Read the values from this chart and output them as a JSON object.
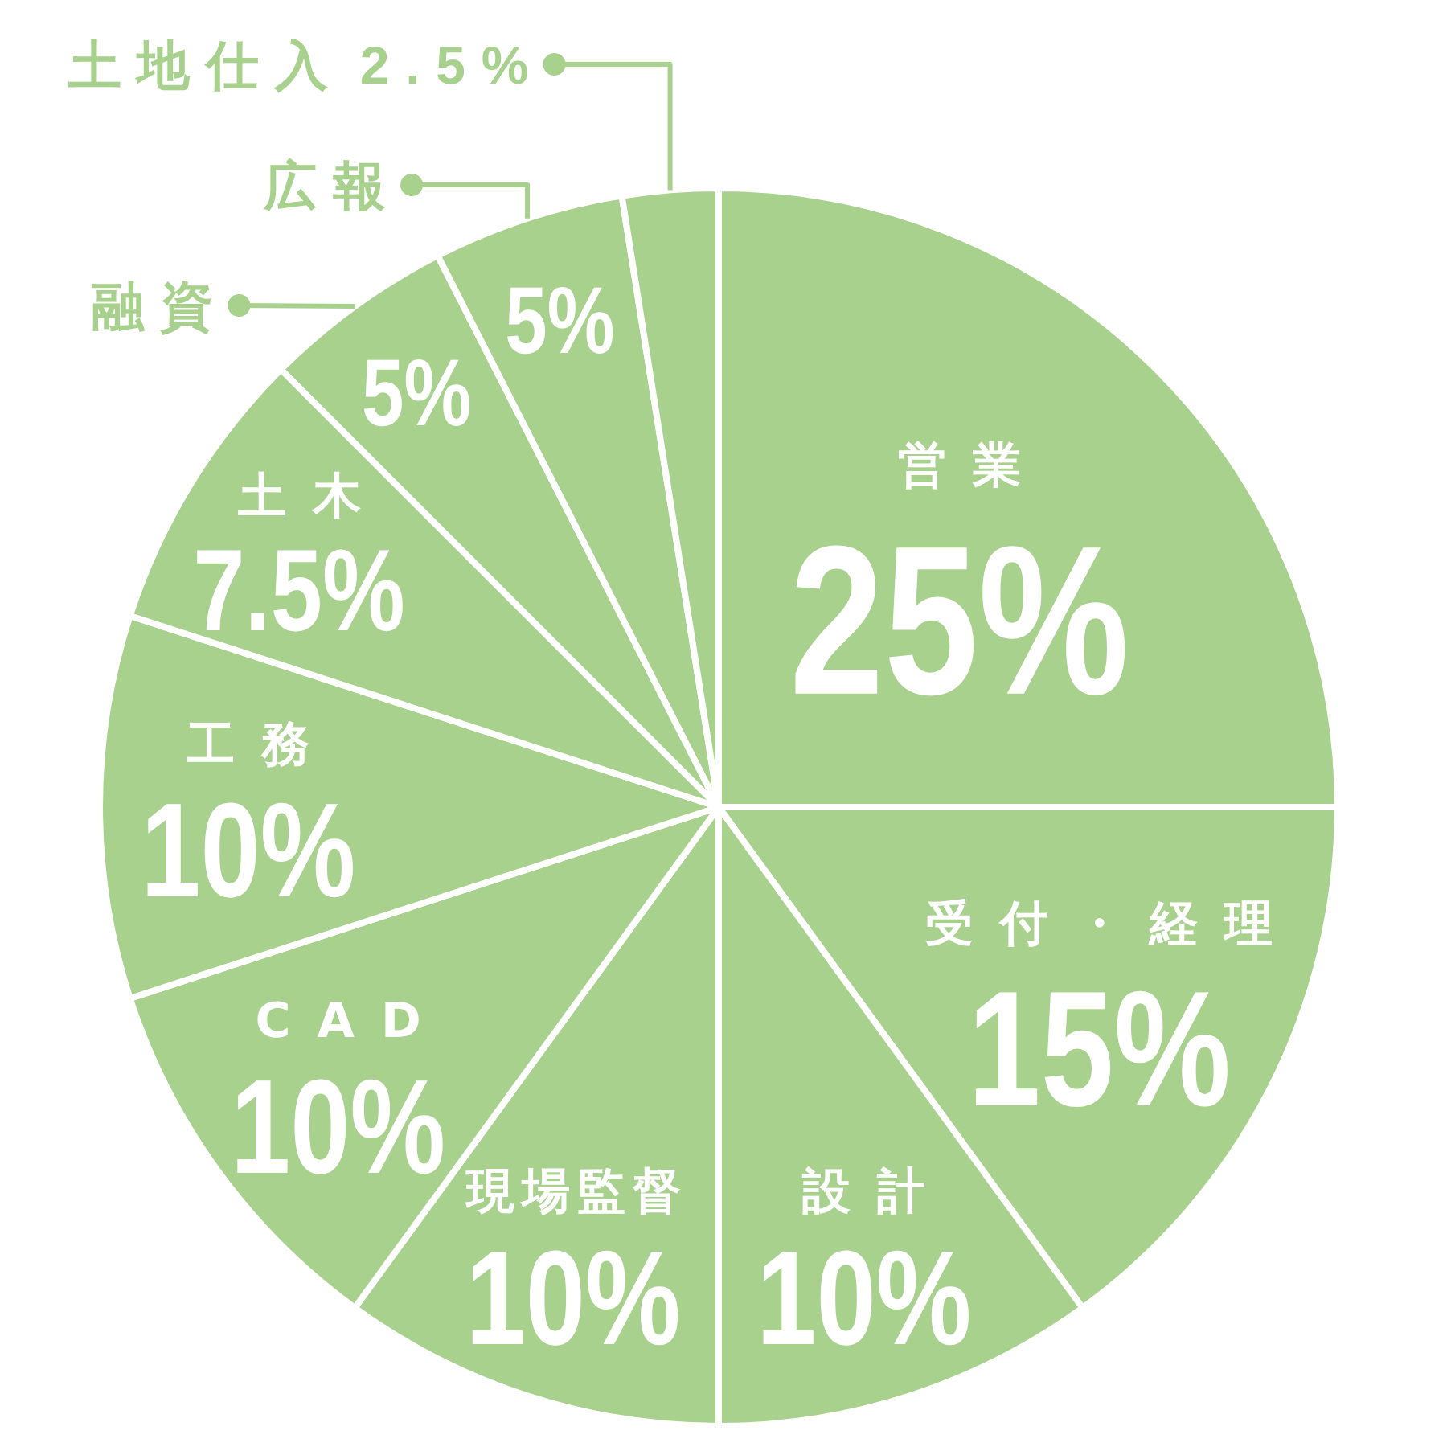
{
  "chart_data": {
    "type": "pie",
    "categories": [
      "営業",
      "受付・経理",
      "設計",
      "現場監督",
      "CAD",
      "工務",
      "土木",
      "融資",
      "広報",
      "土地仕入"
    ],
    "values": [
      25,
      15,
      10,
      10,
      10,
      10,
      7.5,
      5,
      5,
      2.5
    ],
    "colors": [
      "#a9d18e",
      "#a9d18e",
      "#a9d18e",
      "#a9d18e",
      "#a9d18e",
      "#a9d18e",
      "#a9d18e",
      "#a9d18e",
      "#a9d18e",
      "#a9d18e"
    ],
    "value_labels": [
      "25%",
      "15%",
      "10%",
      "10%",
      "10%",
      "10%",
      "7.5%",
      "5%",
      "5%",
      "2.5%"
    ]
  }
}
